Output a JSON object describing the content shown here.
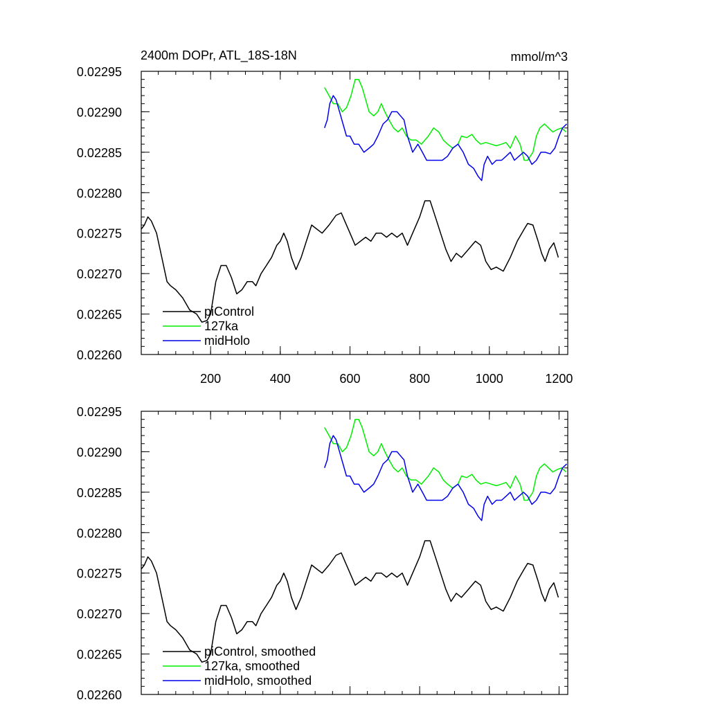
{
  "figure": {
    "title": "2400m DOPr, ATL_18S-18N",
    "units": "mmol/m^3"
  },
  "colors": {
    "piControl": "#000000",
    "127ka": "#00ee00",
    "midHolo": "#0000ee"
  },
  "chart_data": [
    {
      "type": "line",
      "title": "2400m DOPr, ATL_18S-18N",
      "units_label": "mmol/m^3",
      "xlabel": "",
      "ylabel": "",
      "xlim": [
        1,
        1225
      ],
      "ylim": [
        0.0226,
        0.02295
      ],
      "xticks": [
        200,
        400,
        600,
        800,
        1000,
        1200
      ],
      "xtick_labels": [
        "200",
        "400",
        "600",
        "800",
        "1000",
        "1200"
      ],
      "yticks": [
        0.0226,
        0.02265,
        0.0227,
        0.02275,
        0.0228,
        0.02285,
        0.0229,
        0.02295
      ],
      "ytick_labels": [
        "0.02260",
        "0.02265",
        "0.02270",
        "0.02275",
        "0.02280",
        "0.02285",
        "0.02290",
        "0.02295"
      ],
      "legend_position": "bottom-left",
      "series": [
        {
          "name": "piControl",
          "color": "#000000",
          "x": [
            1,
            10,
            20,
            30,
            45,
            60,
            75,
            85,
            100,
            120,
            140,
            160,
            175,
            190,
            200,
            215,
            230,
            245,
            260,
            275,
            290,
            305,
            320,
            330,
            345,
            360,
            375,
            390,
            400,
            410,
            420,
            432,
            445,
            460,
            475,
            490,
            505,
            520,
            540,
            560,
            575,
            585,
            600,
            615,
            630,
            645,
            660,
            675,
            690,
            705,
            720,
            735,
            750,
            765,
            780,
            800,
            815,
            830,
            845,
            860,
            875,
            890,
            905,
            920,
            940,
            960,
            975,
            990,
            1005,
            1020,
            1040,
            1060,
            1080,
            1100,
            1110,
            1125,
            1140,
            1150,
            1160,
            1172,
            1185,
            1198
          ],
          "y": [
            0.022755,
            0.02276,
            0.02277,
            0.022765,
            0.02275,
            0.02272,
            0.02269,
            0.022685,
            0.02268,
            0.02267,
            0.022655,
            0.02265,
            0.02264,
            0.022642,
            0.02265,
            0.02269,
            0.02271,
            0.02271,
            0.022695,
            0.022675,
            0.02268,
            0.02269,
            0.02269,
            0.022685,
            0.0227,
            0.02271,
            0.02272,
            0.022735,
            0.02274,
            0.02275,
            0.02274,
            0.02272,
            0.022705,
            0.02272,
            0.02274,
            0.02276,
            0.022755,
            0.02275,
            0.02276,
            0.022772,
            0.022775,
            0.022765,
            0.02275,
            0.022735,
            0.02274,
            0.022745,
            0.02274,
            0.02275,
            0.02275,
            0.022745,
            0.02275,
            0.022745,
            0.02275,
            0.022735,
            0.02275,
            0.02277,
            0.02279,
            0.02279,
            0.02277,
            0.02275,
            0.02273,
            0.022715,
            0.022725,
            0.02272,
            0.02273,
            0.02274,
            0.022735,
            0.022715,
            0.022705,
            0.022708,
            0.022703,
            0.02272,
            0.02274,
            0.022755,
            0.022762,
            0.02276,
            0.02274,
            0.022725,
            0.022715,
            0.02273,
            0.022738,
            0.02272
          ]
        },
        {
          "name": "127ka",
          "color": "#00ee00",
          "x": [
            527,
            540,
            552,
            565,
            578,
            590,
            603,
            615,
            625,
            635,
            645,
            655,
            668,
            680,
            690,
            700,
            712,
            725,
            738,
            750,
            762,
            775,
            790,
            805,
            815,
            825,
            840,
            855,
            868,
            880,
            895,
            910,
            920,
            935,
            950,
            962,
            975,
            990,
            1005,
            1020,
            1035,
            1048,
            1060,
            1075,
            1088,
            1100,
            1110,
            1125,
            1135,
            1145,
            1158,
            1170,
            1182,
            1195,
            1208,
            1220
          ],
          "y": [
            0.02293,
            0.02292,
            0.02291,
            0.02291,
            0.0229,
            0.022905,
            0.02292,
            0.02294,
            0.02294,
            0.02293,
            0.022915,
            0.0229,
            0.022895,
            0.0229,
            0.02291,
            0.0229,
            0.02289,
            0.02288,
            0.022875,
            0.02288,
            0.02287,
            0.022865,
            0.022865,
            0.02286,
            0.022865,
            0.02287,
            0.02288,
            0.022875,
            0.022865,
            0.02286,
            0.022855,
            0.02286,
            0.02287,
            0.022868,
            0.022872,
            0.022865,
            0.02286,
            0.022862,
            0.02286,
            0.022858,
            0.02286,
            0.022862,
            0.022855,
            0.02287,
            0.02286,
            0.02284,
            0.02284,
            0.02285,
            0.02287,
            0.02288,
            0.022885,
            0.02288,
            0.022875,
            0.022878,
            0.02288,
            0.022875
          ]
        },
        {
          "name": "midHolo",
          "color": "#0000ee",
          "x": [
            527,
            535,
            542,
            552,
            560,
            570,
            580,
            590,
            600,
            612,
            625,
            640,
            655,
            668,
            680,
            695,
            708,
            720,
            735,
            745,
            755,
            765,
            780,
            795,
            808,
            820,
            835,
            850,
            865,
            880,
            895,
            910,
            925,
            940,
            955,
            968,
            978,
            985,
            995,
            1008,
            1020,
            1035,
            1048,
            1060,
            1072,
            1085,
            1098,
            1110,
            1122,
            1135,
            1148,
            1160,
            1175,
            1188,
            1200,
            1210,
            1222
          ],
          "y": [
            0.02288,
            0.02289,
            0.02291,
            0.02292,
            0.022915,
            0.0229,
            0.022885,
            0.02287,
            0.02287,
            0.02286,
            0.02286,
            0.02285,
            0.022855,
            0.02286,
            0.02287,
            0.022885,
            0.02289,
            0.0229,
            0.0229,
            0.022895,
            0.02289,
            0.02287,
            0.02285,
            0.02286,
            0.02285,
            0.02284,
            0.02284,
            0.02284,
            0.02284,
            0.022845,
            0.022855,
            0.02286,
            0.02285,
            0.022835,
            0.02283,
            0.02282,
            0.022815,
            0.022835,
            0.022845,
            0.022835,
            0.02284,
            0.02284,
            0.022845,
            0.02285,
            0.02284,
            0.022845,
            0.02285,
            0.022845,
            0.022835,
            0.02284,
            0.02285,
            0.02285,
            0.022848,
            0.022855,
            0.02287,
            0.02288,
            0.022885
          ]
        }
      ]
    },
    {
      "type": "line",
      "title": "",
      "xlabel": "",
      "ylabel": "",
      "xlim": [
        1,
        1225
      ],
      "ylim": [
        0.0226,
        0.02295
      ],
      "xticks": [
        200,
        400,
        600,
        800,
        1000,
        1200
      ],
      "xtick_labels": [],
      "yticks": [
        0.0226,
        0.02265,
        0.0227,
        0.02275,
        0.0228,
        0.02285,
        0.0229,
        0.02295
      ],
      "ytick_labels": [
        "0.02260",
        "0.02265",
        "0.02270",
        "0.02275",
        "0.02280",
        "0.02285",
        "0.02290",
        "0.02295"
      ],
      "legend_position": "bottom-left",
      "series": [
        {
          "name": "piControl, smoothed",
          "color": "#000000",
          "x": [
            1,
            10,
            20,
            30,
            45,
            60,
            75,
            85,
            100,
            120,
            140,
            160,
            175,
            190,
            200,
            215,
            230,
            245,
            260,
            275,
            290,
            305,
            320,
            330,
            345,
            360,
            375,
            390,
            400,
            410,
            420,
            432,
            445,
            460,
            475,
            490,
            505,
            520,
            540,
            560,
            575,
            585,
            600,
            615,
            630,
            645,
            660,
            675,
            690,
            705,
            720,
            735,
            750,
            765,
            780,
            800,
            815,
            830,
            845,
            860,
            875,
            890,
            905,
            920,
            940,
            960,
            975,
            990,
            1005,
            1020,
            1040,
            1060,
            1080,
            1100,
            1110,
            1125,
            1140,
            1150,
            1160,
            1172,
            1185,
            1198
          ],
          "y": [
            0.022755,
            0.02276,
            0.02277,
            0.022765,
            0.02275,
            0.02272,
            0.02269,
            0.022685,
            0.02268,
            0.02267,
            0.022655,
            0.02265,
            0.02264,
            0.022642,
            0.02265,
            0.02269,
            0.02271,
            0.02271,
            0.022695,
            0.022675,
            0.02268,
            0.02269,
            0.02269,
            0.022685,
            0.0227,
            0.02271,
            0.02272,
            0.022735,
            0.02274,
            0.02275,
            0.02274,
            0.02272,
            0.022705,
            0.02272,
            0.02274,
            0.02276,
            0.022755,
            0.02275,
            0.02276,
            0.022772,
            0.022775,
            0.022765,
            0.02275,
            0.022735,
            0.02274,
            0.022745,
            0.02274,
            0.02275,
            0.02275,
            0.022745,
            0.02275,
            0.022745,
            0.02275,
            0.022735,
            0.02275,
            0.02277,
            0.02279,
            0.02279,
            0.02277,
            0.02275,
            0.02273,
            0.022715,
            0.022725,
            0.02272,
            0.02273,
            0.02274,
            0.022735,
            0.022715,
            0.022705,
            0.022708,
            0.022703,
            0.02272,
            0.02274,
            0.022755,
            0.022762,
            0.02276,
            0.02274,
            0.022725,
            0.022715,
            0.02273,
            0.022738,
            0.02272
          ]
        },
        {
          "name": "127ka, smoothed",
          "color": "#00ee00",
          "x": [
            527,
            540,
            552,
            565,
            578,
            590,
            603,
            615,
            625,
            635,
            645,
            655,
            668,
            680,
            690,
            700,
            712,
            725,
            738,
            750,
            762,
            775,
            790,
            805,
            815,
            825,
            840,
            855,
            868,
            880,
            895,
            910,
            920,
            935,
            950,
            962,
            975,
            990,
            1005,
            1020,
            1035,
            1048,
            1060,
            1075,
            1088,
            1100,
            1110,
            1125,
            1135,
            1145,
            1158,
            1170,
            1182,
            1195,
            1208,
            1220
          ],
          "y": [
            0.02293,
            0.02292,
            0.02291,
            0.02291,
            0.0229,
            0.022905,
            0.02292,
            0.02294,
            0.02294,
            0.02293,
            0.022915,
            0.0229,
            0.022895,
            0.0229,
            0.02291,
            0.0229,
            0.02289,
            0.02288,
            0.022875,
            0.02288,
            0.02287,
            0.022865,
            0.022865,
            0.02286,
            0.022865,
            0.02287,
            0.02288,
            0.022875,
            0.022865,
            0.02286,
            0.022855,
            0.02286,
            0.02287,
            0.022868,
            0.022872,
            0.022865,
            0.02286,
            0.022862,
            0.02286,
            0.022858,
            0.02286,
            0.022862,
            0.022855,
            0.02287,
            0.02286,
            0.02284,
            0.02284,
            0.02285,
            0.02287,
            0.02288,
            0.022885,
            0.02288,
            0.022875,
            0.022878,
            0.02288,
            0.022875
          ]
        },
        {
          "name": "midHolo, smoothed",
          "color": "#0000ee",
          "x": [
            527,
            535,
            542,
            552,
            560,
            570,
            580,
            590,
            600,
            612,
            625,
            640,
            655,
            668,
            680,
            695,
            708,
            720,
            735,
            745,
            755,
            765,
            780,
            795,
            808,
            820,
            835,
            850,
            865,
            880,
            895,
            910,
            925,
            940,
            955,
            968,
            978,
            985,
            995,
            1008,
            1020,
            1035,
            1048,
            1060,
            1072,
            1085,
            1098,
            1110,
            1122,
            1135,
            1148,
            1160,
            1175,
            1188,
            1200,
            1210,
            1222
          ],
          "y": [
            0.02288,
            0.02289,
            0.02291,
            0.02292,
            0.022915,
            0.0229,
            0.022885,
            0.02287,
            0.02287,
            0.02286,
            0.02286,
            0.02285,
            0.022855,
            0.02286,
            0.02287,
            0.022885,
            0.02289,
            0.0229,
            0.0229,
            0.022895,
            0.02289,
            0.02287,
            0.02285,
            0.02286,
            0.02285,
            0.02284,
            0.02284,
            0.02284,
            0.02284,
            0.022845,
            0.022855,
            0.02286,
            0.02285,
            0.022835,
            0.02283,
            0.02282,
            0.022815,
            0.022835,
            0.022845,
            0.022835,
            0.02284,
            0.02284,
            0.022845,
            0.02285,
            0.02284,
            0.022845,
            0.02285,
            0.022845,
            0.022835,
            0.02284,
            0.02285,
            0.02285,
            0.022848,
            0.022855,
            0.02287,
            0.02288,
            0.022885
          ]
        }
      ]
    }
  ]
}
